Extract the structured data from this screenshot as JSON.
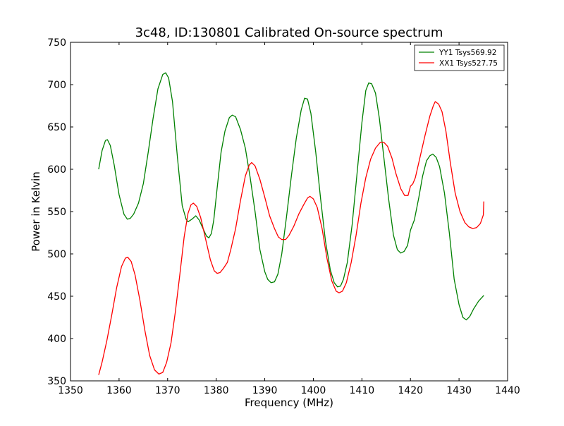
{
  "chart_data": {
    "type": "line",
    "title": "3c48, ID:130801 Calibrated On-source spectrum",
    "xlabel": "Frequency (MHz)",
    "ylabel": "Power in Kelvin",
    "xlim": [
      1350,
      1440
    ],
    "ylim": [
      350,
      750
    ],
    "xticks": [
      1350,
      1360,
      1370,
      1380,
      1390,
      1400,
      1410,
      1420,
      1430,
      1440
    ],
    "yticks": [
      350,
      400,
      450,
      500,
      550,
      600,
      650,
      700,
      750
    ],
    "grid": false,
    "legend_position": "top-right",
    "series": [
      {
        "name": "YY1 Tsys569.92",
        "color": "#008000",
        "points": [
          [
            1355.8,
            600
          ],
          [
            1356.5,
            622
          ],
          [
            1357.2,
            634
          ],
          [
            1357.6,
            635
          ],
          [
            1358.2,
            628
          ],
          [
            1359,
            605
          ],
          [
            1360,
            570
          ],
          [
            1361,
            547
          ],
          [
            1361.7,
            541
          ],
          [
            1362.3,
            542
          ],
          [
            1363,
            547
          ],
          [
            1364,
            560
          ],
          [
            1365,
            583
          ],
          [
            1366,
            620
          ],
          [
            1367,
            660
          ],
          [
            1368,
            695
          ],
          [
            1369,
            712
          ],
          [
            1369.6,
            714
          ],
          [
            1370.2,
            708
          ],
          [
            1371,
            680
          ],
          [
            1372,
            615
          ],
          [
            1373,
            557
          ],
          [
            1373.8,
            541
          ],
          [
            1374.2,
            538
          ],
          [
            1375,
            541
          ],
          [
            1375.8,
            545
          ],
          [
            1376.5,
            540
          ],
          [
            1377.2,
            531
          ],
          [
            1378,
            521
          ],
          [
            1378.5,
            519
          ],
          [
            1379,
            524
          ],
          [
            1379.5,
            540
          ],
          [
            1380.2,
            578
          ],
          [
            1381,
            620
          ],
          [
            1381.8,
            645
          ],
          [
            1382.7,
            661
          ],
          [
            1383.3,
            664
          ],
          [
            1384,
            662
          ],
          [
            1385,
            647
          ],
          [
            1386,
            625
          ],
          [
            1387,
            590
          ],
          [
            1388,
            550
          ],
          [
            1389,
            505
          ],
          [
            1390,
            479
          ],
          [
            1390.6,
            470
          ],
          [
            1391.3,
            466
          ],
          [
            1392,
            467
          ],
          [
            1392.7,
            476
          ],
          [
            1393.5,
            500
          ],
          [
            1394.5,
            545
          ],
          [
            1395.5,
            593
          ],
          [
            1396.5,
            637
          ],
          [
            1397.5,
            670
          ],
          [
            1398.2,
            684
          ],
          [
            1398.8,
            683
          ],
          [
            1399.5,
            666
          ],
          [
            1400.5,
            620
          ],
          [
            1401.5,
            565
          ],
          [
            1402.5,
            515
          ],
          [
            1403.5,
            481
          ],
          [
            1404.3,
            466
          ],
          [
            1405,
            461
          ],
          [
            1405.6,
            462
          ],
          [
            1406.2,
            470
          ],
          [
            1407,
            490
          ],
          [
            1408,
            535
          ],
          [
            1409,
            595
          ],
          [
            1410,
            655
          ],
          [
            1410.8,
            693
          ],
          [
            1411.4,
            702
          ],
          [
            1412,
            701
          ],
          [
            1412.8,
            690
          ],
          [
            1413.6,
            660
          ],
          [
            1414.5,
            615
          ],
          [
            1415.5,
            565
          ],
          [
            1416.5,
            522
          ],
          [
            1417.3,
            505
          ],
          [
            1418,
            501
          ],
          [
            1418.7,
            503
          ],
          [
            1419.4,
            510
          ],
          [
            1420,
            528
          ],
          [
            1420.8,
            540
          ],
          [
            1421.7,
            566
          ],
          [
            1422.5,
            592
          ],
          [
            1423.3,
            610
          ],
          [
            1424,
            616
          ],
          [
            1424.6,
            618
          ],
          [
            1425.3,
            614
          ],
          [
            1426,
            603
          ],
          [
            1427,
            572
          ],
          [
            1428,
            525
          ],
          [
            1429,
            470
          ],
          [
            1430,
            440
          ],
          [
            1430.8,
            425
          ],
          [
            1431.5,
            422
          ],
          [
            1432.2,
            426
          ],
          [
            1433,
            435
          ],
          [
            1434,
            444
          ],
          [
            1435.1,
            451
          ]
        ]
      },
      {
        "name": "XX1 Tsys527.75",
        "color": "#ff0000",
        "points": [
          [
            1355.8,
            357
          ],
          [
            1356.5,
            372
          ],
          [
            1357.5,
            398
          ],
          [
            1358.5,
            428
          ],
          [
            1359.5,
            460
          ],
          [
            1360.5,
            485
          ],
          [
            1361.3,
            495
          ],
          [
            1361.8,
            496
          ],
          [
            1362.5,
            491
          ],
          [
            1363.3,
            475
          ],
          [
            1364.3,
            445
          ],
          [
            1365.3,
            410
          ],
          [
            1366.3,
            380
          ],
          [
            1367.3,
            363
          ],
          [
            1368.2,
            358
          ],
          [
            1369,
            360
          ],
          [
            1369.8,
            372
          ],
          [
            1370.7,
            395
          ],
          [
            1371.6,
            432
          ],
          [
            1372.5,
            475
          ],
          [
            1373.4,
            520
          ],
          [
            1374.2,
            548
          ],
          [
            1374.8,
            558
          ],
          [
            1375.3,
            560
          ],
          [
            1376,
            556
          ],
          [
            1376.8,
            543
          ],
          [
            1377.8,
            518
          ],
          [
            1378.8,
            493
          ],
          [
            1379.6,
            480
          ],
          [
            1380.2,
            477
          ],
          [
            1380.8,
            478
          ],
          [
            1381.5,
            483
          ],
          [
            1382.3,
            490
          ],
          [
            1383,
            505
          ],
          [
            1384,
            530
          ],
          [
            1385,
            563
          ],
          [
            1386,
            592
          ],
          [
            1386.8,
            605
          ],
          [
            1387.3,
            608
          ],
          [
            1388,
            604
          ],
          [
            1389,
            588
          ],
          [
            1390,
            567
          ],
          [
            1391,
            545
          ],
          [
            1392,
            530
          ],
          [
            1392.8,
            520
          ],
          [
            1393.5,
            517
          ],
          [
            1394.3,
            517
          ],
          [
            1395,
            522
          ],
          [
            1396,
            533
          ],
          [
            1397,
            547
          ],
          [
            1398,
            558
          ],
          [
            1398.8,
            566
          ],
          [
            1399.3,
            568
          ],
          [
            1400,
            565
          ],
          [
            1400.8,
            555
          ],
          [
            1401.8,
            530
          ],
          [
            1402.8,
            495
          ],
          [
            1403.8,
            468
          ],
          [
            1404.7,
            456
          ],
          [
            1405.3,
            454
          ],
          [
            1406,
            456
          ],
          [
            1406.8,
            466
          ],
          [
            1407.8,
            490
          ],
          [
            1408.8,
            522
          ],
          [
            1409.8,
            560
          ],
          [
            1410.8,
            590
          ],
          [
            1411.8,
            612
          ],
          [
            1412.8,
            625
          ],
          [
            1413.8,
            632
          ],
          [
            1414.5,
            632
          ],
          [
            1415.3,
            627
          ],
          [
            1416.2,
            613
          ],
          [
            1417,
            595
          ],
          [
            1418,
            577
          ],
          [
            1418.8,
            569
          ],
          [
            1419.5,
            569
          ],
          [
            1420,
            580
          ],
          [
            1420.5,
            583
          ],
          [
            1421,
            590
          ],
          [
            1422,
            615
          ],
          [
            1423,
            640
          ],
          [
            1424,
            663
          ],
          [
            1424.7,
            675
          ],
          [
            1425.1,
            680
          ],
          [
            1425.8,
            677
          ],
          [
            1426.5,
            668
          ],
          [
            1427.3,
            645
          ],
          [
            1428.2,
            608
          ],
          [
            1429.2,
            572
          ],
          [
            1430.2,
            550
          ],
          [
            1431.2,
            537
          ],
          [
            1432,
            532
          ],
          [
            1432.8,
            530
          ],
          [
            1433.6,
            531
          ],
          [
            1434.4,
            536
          ],
          [
            1435,
            546
          ],
          [
            1435.1,
            562
          ]
        ]
      }
    ]
  }
}
